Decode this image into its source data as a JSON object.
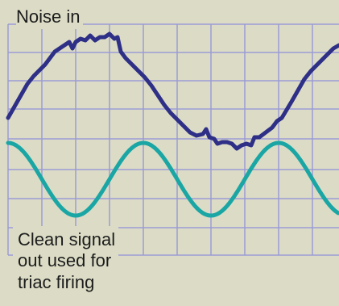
{
  "labels": {
    "noise_in": "Noise in",
    "clean_out": [
      "Clean signal",
      "out used for",
      "triac firing"
    ]
  },
  "colors": {
    "background": "#dcdcc6",
    "grid": "#9b9bd6",
    "noisy_signal": "#2e2f86",
    "clean_signal": "#1aa6a4",
    "text": "#1c1c1c"
  }
}
